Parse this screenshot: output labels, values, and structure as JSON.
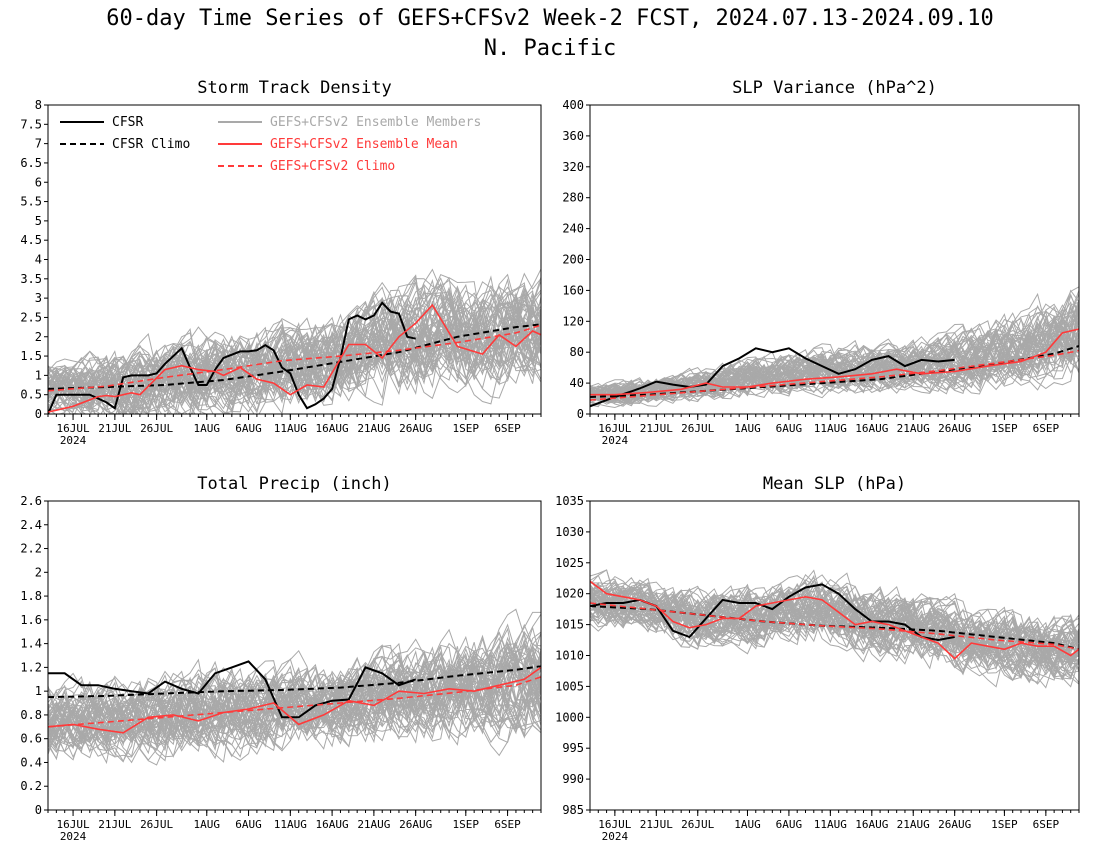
{
  "header": {
    "title": "60-day Time Series of GEFS+CFSv2 Week-2 FCST, 2024.07.13-2024.09.10",
    "region": "N. Pacific"
  },
  "legend": {
    "cfsr": "CFSR",
    "cfsr_climo": "CFSR Climo",
    "members": "GEFS+CFSv2 Ensemble Members",
    "ens_mean": "GEFS+CFSv2 Ensemble Mean",
    "gefs_climo": "GEFS+CFSv2 Climo"
  },
  "colors": {
    "cfsr": "#000000",
    "ens_mean": "#ff3a3a",
    "members": "#a9a9a9"
  },
  "x_axis": {
    "start_date": "2024-07-13",
    "end_date": "2024-09-10",
    "tick_labels": [
      "16JUL",
      "21JUL",
      "26JUL",
      "1AUG",
      "6AUG",
      "11AUG",
      "16AUG",
      "21AUG",
      "26AUG",
      "1SEP",
      "6SEP"
    ],
    "tick_dates": [
      "2024-07-16",
      "2024-07-21",
      "2024-07-26",
      "2024-08-01",
      "2024-08-06",
      "2024-08-11",
      "2024-08-16",
      "2024-08-21",
      "2024-08-26",
      "2024-09-01",
      "2024-09-06"
    ],
    "year_label": "2024"
  },
  "chart_data": [
    {
      "type": "line",
      "title": "Storm Track Density",
      "ylim": [
        0,
        8
      ],
      "yticks": [
        "0",
        "0.5",
        "1",
        "1.5",
        "2",
        "2.5",
        "3",
        "3.5",
        "4",
        "4.5",
        "5",
        "5.5",
        "6",
        "6.5",
        "7",
        "7.5",
        "8"
      ],
      "show_legend": true,
      "series": [
        {
          "name": "CFSR",
          "dates": [
            "07-13",
            "07-14",
            "07-18",
            "07-20",
            "07-21",
            "07-22",
            "07-23",
            "07-24",
            "07-25",
            "07-26",
            "07-27",
            "07-29",
            "07-30",
            "07-31",
            "08-01",
            "08-02",
            "08-03",
            "08-05",
            "08-06",
            "08-07",
            "08-08",
            "08-09",
            "08-10",
            "08-11",
            "08-12",
            "08-13",
            "08-14",
            "08-15",
            "08-16",
            "08-17",
            "08-18",
            "08-19",
            "08-20",
            "08-21",
            "08-22",
            "08-23",
            "08-24",
            "08-25",
            "08-26"
          ],
          "values": [
            0.0,
            0.5,
            0.5,
            0.3,
            0.15,
            0.95,
            1.0,
            1.0,
            1.0,
            1.05,
            1.3,
            1.7,
            1.2,
            0.75,
            0.75,
            1.15,
            1.45,
            1.62,
            1.62,
            1.65,
            1.78,
            1.65,
            1.2,
            1.05,
            0.5,
            0.15,
            0.25,
            0.4,
            0.65,
            1.45,
            2.45,
            2.55,
            2.45,
            2.55,
            2.88,
            2.65,
            2.6,
            2.0,
            1.95
          ]
        },
        {
          "name": "CFSR Climo",
          "dates": [
            "07-13",
            "07-20",
            "07-27",
            "08-03",
            "08-10",
            "08-17",
            "08-24",
            "08-31",
            "09-07",
            "09-10"
          ],
          "values": [
            0.65,
            0.7,
            0.75,
            0.88,
            1.1,
            1.35,
            1.6,
            2.0,
            2.25,
            2.32
          ]
        },
        {
          "name": "GEFS+CFSv2 Ensemble Mean",
          "dates": [
            "07-13",
            "07-16",
            "07-19",
            "07-20",
            "07-21",
            "07-22",
            "07-23",
            "07-24",
            "07-27",
            "07-29",
            "07-31",
            "08-02",
            "08-03",
            "08-05",
            "08-07",
            "08-09",
            "08-11",
            "08-13",
            "08-15",
            "08-18",
            "08-20",
            "08-22",
            "08-24",
            "08-26",
            "08-28",
            "08-31",
            "09-03",
            "09-05",
            "09-07",
            "09-09",
            "09-10"
          ],
          "values": [
            0.05,
            0.2,
            0.45,
            0.48,
            0.45,
            0.5,
            0.55,
            0.5,
            1.15,
            1.25,
            1.15,
            1.1,
            1.0,
            1.2,
            0.9,
            0.8,
            0.5,
            0.75,
            0.7,
            1.8,
            1.8,
            1.45,
            2.0,
            2.35,
            2.82,
            1.75,
            1.55,
            2.05,
            1.75,
            2.15,
            2.05
          ]
        },
        {
          "name": "GEFS+CFSv2 Climo",
          "dates": [
            "07-13",
            "07-20",
            "07-27",
            "08-03",
            "08-10",
            "08-17",
            "08-24",
            "08-31",
            "09-07",
            "09-10"
          ],
          "values": [
            0.6,
            0.72,
            0.95,
            1.15,
            1.38,
            1.5,
            1.65,
            1.85,
            2.1,
            2.3
          ]
        }
      ],
      "members_spread": {
        "center": [
          0.65,
          0.7,
          0.85,
          1.0,
          1.15,
          1.3,
          1.75,
          2.0,
          2.1,
          2.2
        ],
        "amplitude": [
          0.9,
          1.3,
          1.5,
          1.6,
          1.6,
          1.7,
          2.0,
          2.1,
          2.1,
          2.1
        ]
      }
    },
    {
      "type": "line",
      "title": "SLP Variance (hPa^2)",
      "ylim": [
        0,
        400
      ],
      "yticks": [
        "0",
        "40",
        "80",
        "120",
        "160",
        "200",
        "240",
        "280",
        "320",
        "360",
        "400"
      ],
      "show_legend": false,
      "series": [
        {
          "name": "CFSR",
          "dates": [
            "07-13",
            "07-16",
            "07-19",
            "07-21",
            "07-23",
            "07-25",
            "07-27",
            "07-29",
            "07-31",
            "08-02",
            "08-04",
            "08-06",
            "08-08",
            "08-10",
            "08-12",
            "08-14",
            "08-16",
            "08-18",
            "08-20",
            "08-22",
            "08-24",
            "08-26"
          ],
          "values": [
            10,
            22,
            33,
            42,
            38,
            35,
            38,
            62,
            72,
            85,
            80,
            85,
            72,
            62,
            52,
            58,
            70,
            75,
            62,
            70,
            68,
            70
          ]
        },
        {
          "name": "CFSR Climo",
          "dates": [
            "07-13",
            "07-20",
            "07-27",
            "08-03",
            "08-10",
            "08-17",
            "08-24",
            "08-31",
            "09-07",
            "09-10"
          ],
          "values": [
            22,
            25,
            30,
            35,
            40,
            45,
            55,
            65,
            78,
            88
          ]
        },
        {
          "name": "GEFS+CFSv2 Ensemble Mean",
          "dates": [
            "07-13",
            "07-16",
            "07-20",
            "07-24",
            "07-27",
            "07-29",
            "08-01",
            "08-04",
            "08-08",
            "08-12",
            "08-16",
            "08-19",
            "08-22",
            "08-26",
            "08-30",
            "09-03",
            "09-06",
            "09-08",
            "09-10"
          ],
          "values": [
            25,
            25,
            28,
            32,
            40,
            35,
            35,
            40,
            45,
            48,
            52,
            58,
            52,
            55,
            62,
            68,
            80,
            105,
            110
          ]
        },
        {
          "name": "GEFS+CFSv2 Climo",
          "dates": [
            "07-13",
            "07-20",
            "07-27",
            "08-03",
            "08-10",
            "08-17",
            "08-24",
            "08-31",
            "09-07",
            "09-10"
          ],
          "values": [
            18,
            24,
            30,
            36,
            42,
            48,
            56,
            66,
            76,
            82
          ]
        }
      ],
      "members_spread": {
        "center": [
          25,
          30,
          38,
          48,
          55,
          60,
          62,
          70,
          85,
          110
        ],
        "amplitude": [
          20,
          25,
          30,
          40,
          40,
          45,
          45,
          60,
          70,
          90
        ]
      }
    },
    {
      "type": "line",
      "title": "Total Precip (inch)",
      "ylim": [
        0,
        2.6
      ],
      "yticks": [
        "0",
        "0.2",
        "0.4",
        "0.6",
        "0.8",
        "1",
        "1.2",
        "1.4",
        "1.6",
        "1.8",
        "2",
        "2.2",
        "2.4",
        "2.6"
      ],
      "show_legend": false,
      "series": [
        {
          "name": "CFSR",
          "dates": [
            "07-13",
            "07-15",
            "07-17",
            "07-19",
            "07-21",
            "07-23",
            "07-25",
            "07-27",
            "07-29",
            "07-31",
            "08-02",
            "08-04",
            "08-06",
            "08-08",
            "08-10",
            "08-12",
            "08-14",
            "08-16",
            "08-18",
            "08-20",
            "08-22",
            "08-24",
            "08-26"
          ],
          "values": [
            1.15,
            1.15,
            1.05,
            1.05,
            1.02,
            1.0,
            0.98,
            1.08,
            1.02,
            0.98,
            1.15,
            1.2,
            1.25,
            1.1,
            0.78,
            0.78,
            0.88,
            0.92,
            0.93,
            1.2,
            1.15,
            1.05,
            1.1
          ]
        },
        {
          "name": "CFSR Climo",
          "dates": [
            "07-13",
            "07-20",
            "07-27",
            "08-03",
            "08-10",
            "08-17",
            "08-24",
            "08-31",
            "09-07",
            "09-10"
          ],
          "values": [
            0.95,
            0.96,
            0.98,
            1.0,
            1.01,
            1.03,
            1.07,
            1.13,
            1.18,
            1.21
          ]
        },
        {
          "name": "GEFS+CFSv2 Ensemble Mean",
          "dates": [
            "07-13",
            "07-16",
            "07-19",
            "07-22",
            "07-25",
            "07-28",
            "07-31",
            "08-03",
            "08-06",
            "08-09",
            "08-12",
            "08-15",
            "08-18",
            "08-21",
            "08-24",
            "08-27",
            "08-30",
            "09-02",
            "09-05",
            "09-08",
            "09-10"
          ],
          "values": [
            0.7,
            0.72,
            0.68,
            0.65,
            0.78,
            0.8,
            0.75,
            0.82,
            0.85,
            0.9,
            0.72,
            0.8,
            0.92,
            0.88,
            1.0,
            0.98,
            1.02,
            1.0,
            1.05,
            1.1,
            1.2
          ]
        },
        {
          "name": "GEFS+CFSv2 Climo",
          "dates": [
            "07-13",
            "07-20",
            "07-27",
            "08-03",
            "08-10",
            "08-17",
            "08-24",
            "08-31",
            "09-07",
            "09-10"
          ],
          "values": [
            0.7,
            0.74,
            0.78,
            0.82,
            0.86,
            0.9,
            0.94,
            0.99,
            1.05,
            1.12
          ]
        }
      ],
      "members_spread": {
        "center": [
          0.72,
          0.75,
          0.8,
          0.85,
          0.85,
          0.9,
          0.95,
          1.0,
          1.05,
          1.1
        ],
        "amplitude": [
          0.45,
          0.5,
          0.5,
          0.55,
          0.5,
          0.5,
          0.55,
          0.6,
          0.65,
          0.7
        ]
      }
    },
    {
      "type": "line",
      "title": "Mean SLP (hPa)",
      "ylim": [
        985,
        1035
      ],
      "yticks": [
        "985",
        "990",
        "995",
        "1000",
        "1005",
        "1010",
        "1015",
        "1020",
        "1025",
        "1030",
        "1035"
      ],
      "show_legend": false,
      "series": [
        {
          "name": "CFSR",
          "dates": [
            "07-13",
            "07-15",
            "07-17",
            "07-19",
            "07-21",
            "07-23",
            "07-25",
            "07-27",
            "07-29",
            "07-31",
            "08-02",
            "08-04",
            "08-06",
            "08-08",
            "08-10",
            "08-12",
            "08-14",
            "08-16",
            "08-18",
            "08-20",
            "08-22",
            "08-24",
            "08-26"
          ],
          "values": [
            1018,
            1018.5,
            1018.5,
            1019,
            1018,
            1014,
            1013,
            1016,
            1019,
            1018.5,
            1018.5,
            1017.5,
            1019.5,
            1021,
            1021.5,
            1020,
            1017.5,
            1015.5,
            1015.5,
            1015,
            1013,
            1012.5,
            1013
          ]
        },
        {
          "name": "CFSR Climo",
          "dates": [
            "07-13",
            "07-20",
            "07-27",
            "08-03",
            "08-10",
            "08-17",
            "08-24",
            "08-31",
            "09-07",
            "09-10"
          ],
          "values": [
            1018,
            1017.5,
            1016.5,
            1015.5,
            1014.8,
            1014.5,
            1014,
            1013,
            1012,
            1011
          ]
        },
        {
          "name": "GEFS+CFSv2 Ensemble Mean",
          "dates": [
            "07-13",
            "07-15",
            "07-17",
            "07-19",
            "07-21",
            "07-23",
            "07-25",
            "07-27",
            "07-29",
            "07-31",
            "08-02",
            "08-04",
            "08-06",
            "08-08",
            "08-10",
            "08-12",
            "08-14",
            "08-16",
            "08-18",
            "08-20",
            "08-22",
            "08-24",
            "08-26",
            "08-28",
            "08-30",
            "09-01",
            "09-03",
            "09-05",
            "09-07",
            "09-09",
            "09-10"
          ],
          "values": [
            1022,
            1020,
            1019.5,
            1019,
            1018,
            1015.5,
            1014.5,
            1015,
            1016,
            1016,
            1018,
            1018.5,
            1019,
            1019.5,
            1019,
            1017,
            1015,
            1015.5,
            1015,
            1014,
            1013,
            1012,
            1009.5,
            1012,
            1011.5,
            1011,
            1012,
            1011.5,
            1011.5,
            1010,
            1011
          ]
        },
        {
          "name": "GEFS+CFSv2 Climo",
          "dates": [
            "07-13",
            "07-20",
            "07-27",
            "08-03",
            "08-10",
            "08-17",
            "08-24",
            "08-31",
            "09-07",
            "09-10"
          ],
          "values": [
            1018.5,
            1017.5,
            1016.5,
            1015.5,
            1014.8,
            1014.3,
            1013.5,
            1012.5,
            1011.8,
            1011
          ]
        }
      ],
      "members_spread": {
        "center": [
          1019,
          1018,
          1016,
          1016.5,
          1018,
          1016,
          1014,
          1012.5,
          1011.5,
          1011
        ],
        "amplitude": [
          6,
          6,
          7,
          7,
          8,
          8,
          8,
          8,
          8,
          8
        ]
      }
    }
  ]
}
